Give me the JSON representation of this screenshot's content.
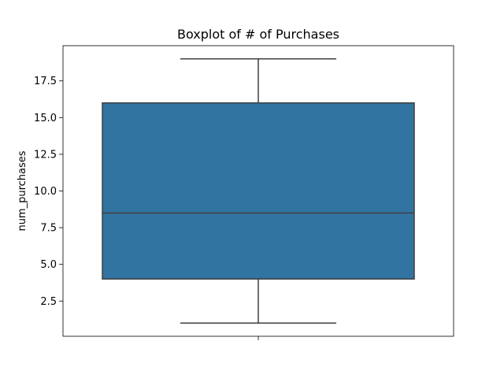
{
  "chart_data": {
    "type": "box",
    "title": "Boxplot of # of Purchases",
    "xlabel": "",
    "ylabel": "num_purchases",
    "ylim": [
      0.1,
      19.9
    ],
    "yticks": [
      2.5,
      5.0,
      7.5,
      10.0,
      12.5,
      15.0,
      17.5
    ],
    "ytick_labels": [
      "2.5",
      "5.0",
      "7.5",
      "10.0",
      "12.5",
      "15.0",
      "17.5"
    ],
    "box": {
      "whisker_low": 1,
      "q1": 4,
      "median": 8.5,
      "q3": 16,
      "whisker_high": 19
    },
    "box_color": "#3274a1",
    "line_color": "#3f3f3f",
    "grid": false
  }
}
